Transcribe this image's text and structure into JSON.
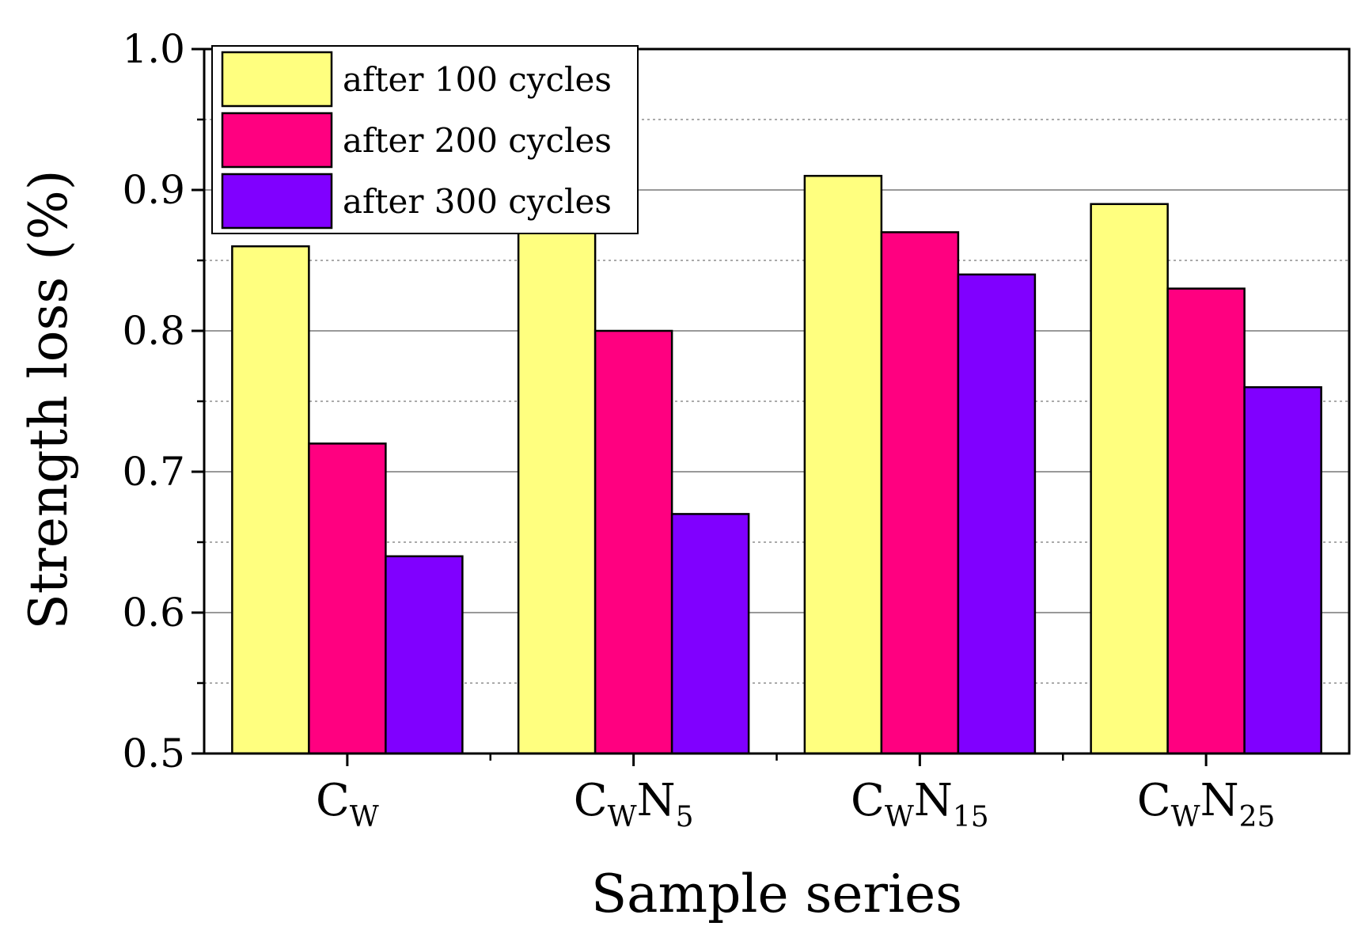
{
  "chart_data": {
    "type": "bar",
    "categories": [
      {
        "base": "C",
        "sub": "W",
        "base2": "",
        "sub2": ""
      },
      {
        "base": "C",
        "sub": "W",
        "base2": "N",
        "sub2": "5"
      },
      {
        "base": "C",
        "sub": "W",
        "base2": "N",
        "sub2": "15"
      },
      {
        "base": "C",
        "sub": "W",
        "base2": "N",
        "sub2": "25"
      }
    ],
    "series": [
      {
        "name": "after 100 cycles",
        "color": "#FFFF7F",
        "values": [
          0.86,
          0.87,
          0.91,
          0.89
        ]
      },
      {
        "name": "after 200 cycles",
        "color": "#FF0080",
        "values": [
          0.72,
          0.8,
          0.87,
          0.83
        ]
      },
      {
        "name": "after 300 cycles",
        "color": "#8000FF",
        "values": [
          0.64,
          0.67,
          0.84,
          0.76
        ]
      }
    ],
    "xlabel": "Sample series",
    "ylabel": "Strength loss (%)",
    "ylim": [
      0.5,
      1.0
    ],
    "yticks": [
      "0.5",
      "0.6",
      "0.7",
      "0.8",
      "0.9",
      "1.0"
    ],
    "major_grid": [
      0.6,
      0.7,
      0.8,
      0.9
    ],
    "minor_grid": [
      0.55,
      0.65,
      0.75,
      0.85,
      0.95
    ],
    "legend_position": "top-left",
    "grid": true
  }
}
